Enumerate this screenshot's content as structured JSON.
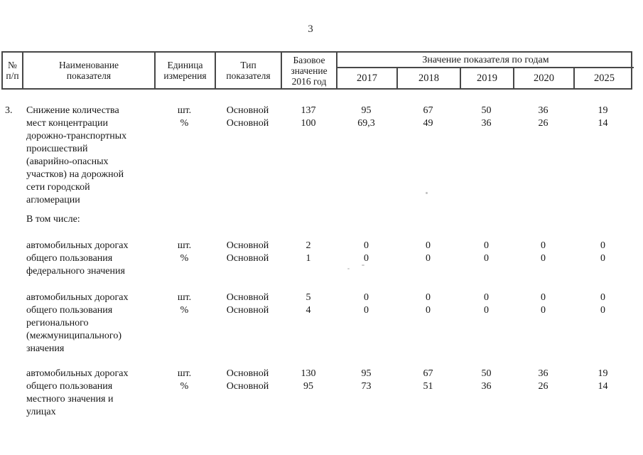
{
  "page": {
    "number": "3"
  },
  "table": {
    "header": {
      "col_num": "№\nп/п",
      "col_name": "Наименование\nпоказателя",
      "col_unit": "Единица\nизмерения",
      "col_type": "Тип\nпоказателя",
      "col_base": "Базовое\nзначение\n2016 год",
      "years_group": "Значение показателя по годам",
      "years": [
        "2017",
        "2018",
        "2019",
        "2020",
        "2025"
      ]
    },
    "subheading": "В том числе:",
    "blocks": [
      {
        "num": "3.",
        "name": "Снижение количества\nмест концентрации\nдорожно-транспортных\nпроисшествий\n(аварийно-опасных\nучастков) на дорожной\nсети городской\nагломерации",
        "rows": [
          {
            "unit": "шт.",
            "type": "Основной",
            "values": [
              "137",
              "95",
              "67",
              "50",
              "36",
              "19"
            ]
          },
          {
            "unit": "%",
            "type": "Основной",
            "values": [
              "100",
              "69,3",
              "49",
              "36",
              "26",
              "14"
            ]
          }
        ]
      },
      {
        "num": "",
        "name": "автомобильных дорогах\nобщего пользования\nфедерального значения",
        "rows": [
          {
            "unit": "шт.",
            "type": "Основной",
            "values": [
              "2",
              "0",
              "0",
              "0",
              "0",
              "0"
            ]
          },
          {
            "unit": "%",
            "type": "Основной",
            "values": [
              "1",
              "0",
              "0",
              "0",
              "0",
              "0"
            ]
          }
        ]
      },
      {
        "num": "",
        "name": "автомобильных дорогах\nобщего пользования\nрегионального\n(межмуниципального)\nзначения",
        "rows": [
          {
            "unit": "шт.",
            "type": "Основной",
            "values": [
              "5",
              "0",
              "0",
              "0",
              "0",
              "0"
            ]
          },
          {
            "unit": "%",
            "type": "Основной",
            "values": [
              "4",
              "0",
              "0",
              "0",
              "0",
              "0"
            ]
          }
        ]
      },
      {
        "num": "",
        "name": "автомобильных дорогах\nобщего пользования\nместного значения и\nулицах",
        "rows": [
          {
            "unit": "шт.",
            "type": "Основной",
            "values": [
              "130",
              "95",
              "67",
              "50",
              "36",
              "19"
            ]
          },
          {
            "unit": "%",
            "type": "Основной",
            "values": [
              "95",
              "73",
              "51",
              "36",
              "26",
              "14"
            ]
          }
        ]
      }
    ]
  }
}
